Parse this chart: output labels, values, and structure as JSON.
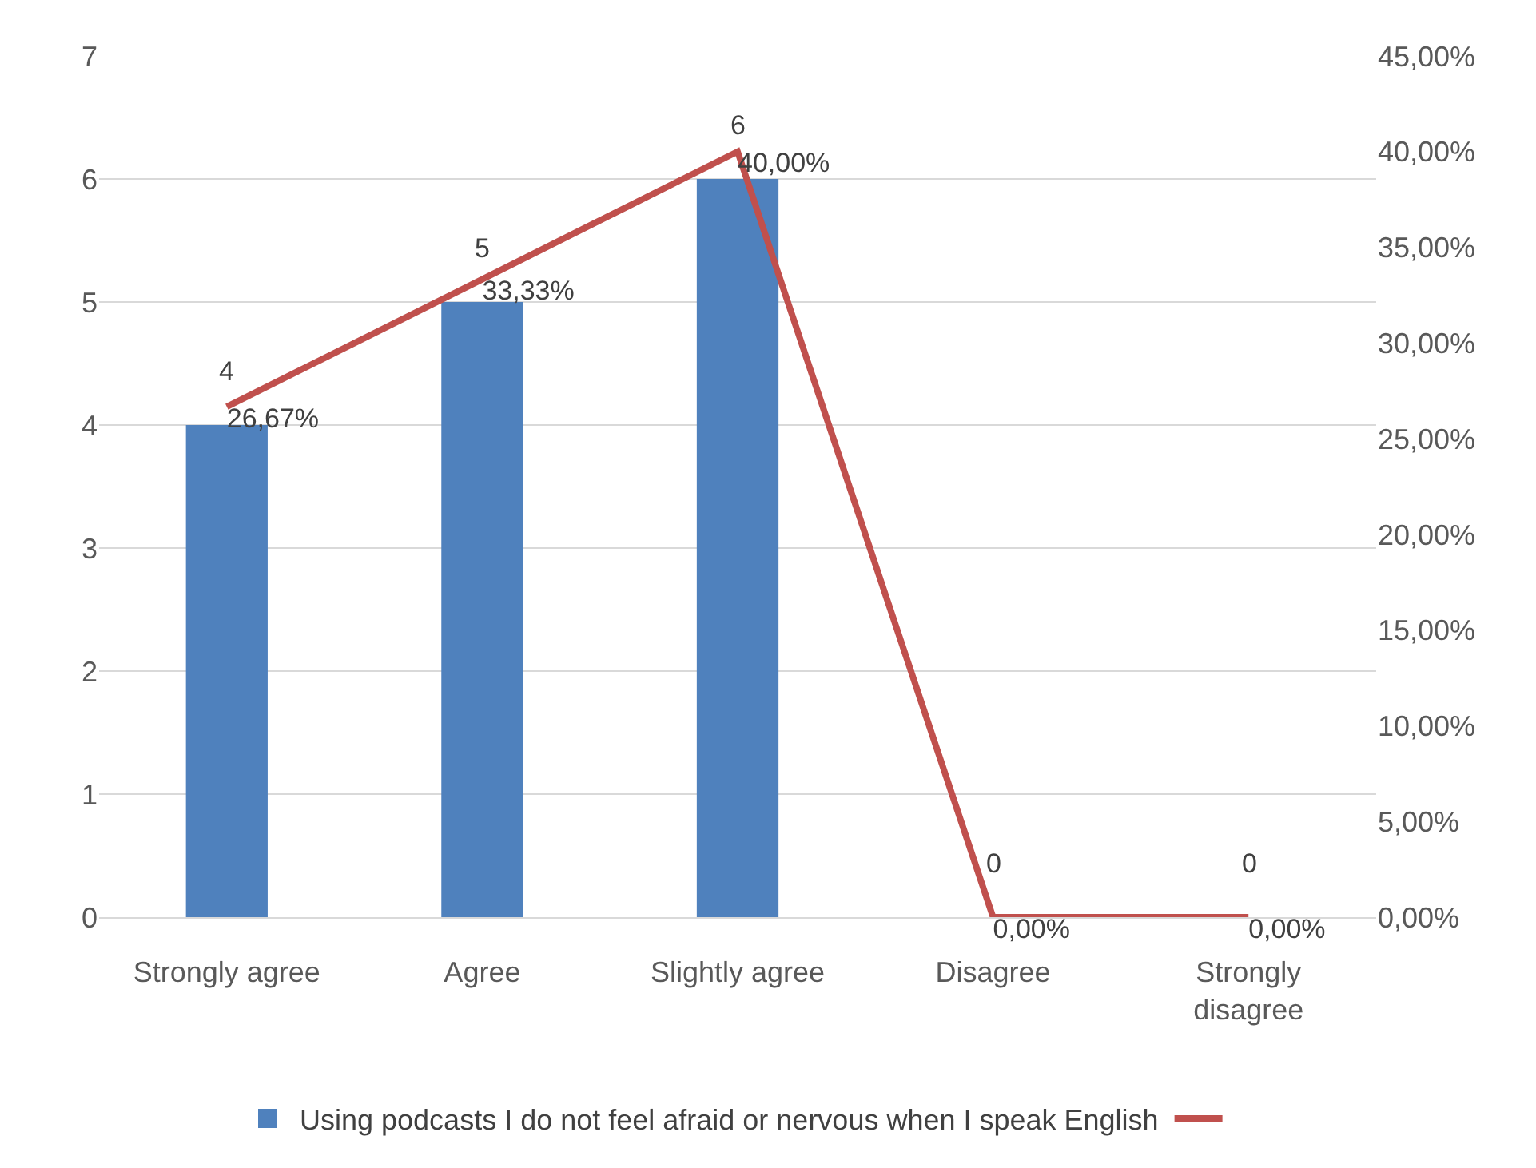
{
  "chart_data": {
    "type": "bar",
    "categories": [
      "Strongly agree",
      "Agree",
      "Slightly agree",
      "Disagree",
      "Strongly disagree"
    ],
    "series": [
      {
        "name": "Using podcasts I do not feel afraid or nervous when I speak English",
        "color": "#4f81bd",
        "values": [
          4,
          5,
          6,
          0,
          0
        ],
        "value_labels": [
          "4",
          "5",
          "6",
          "0",
          "0"
        ]
      },
      {
        "type": "line",
        "axis": "y2",
        "color": "#c0504d",
        "values": [
          26.67,
          33.33,
          40,
          0,
          0
        ],
        "value_labels": [
          "26,67%",
          "33,33%",
          "40,00%",
          "0,00%",
          "0,00%"
        ]
      }
    ],
    "ylim": [
      0,
      7
    ],
    "yticks": [
      0,
      1,
      2,
      3,
      4,
      5,
      6,
      7
    ],
    "y2lim": [
      0,
      45
    ],
    "y2ticks": [
      {
        "value": 0,
        "label": "0,00%"
      },
      {
        "value": 5,
        "label": "5,00%"
      },
      {
        "value": 10,
        "label": "10,00%"
      },
      {
        "value": 15,
        "label": "15,00%"
      },
      {
        "value": 20,
        "label": "20,00%"
      },
      {
        "value": 25,
        "label": "25,00%"
      },
      {
        "value": 30,
        "label": "30,00%"
      },
      {
        "value": 35,
        "label": "35,00%"
      },
      {
        "value": 40,
        "label": "40,00%"
      },
      {
        "value": 45,
        "label": "45,00%"
      }
    ],
    "grid": "y",
    "legend": "bottom",
    "marker": "none",
    "line_style": "solid"
  }
}
